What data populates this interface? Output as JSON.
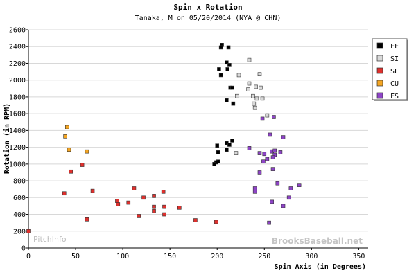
{
  "chart_data": {
    "type": "scatter",
    "title": "Spin x Rotation",
    "subtitle": "Tanaka, M on 05/20/2014 (NYA @ CHN)",
    "xlabel": "Spin Axis (in Degrees)",
    "ylabel": "Rotation (in RPM)",
    "xlim": [
      0,
      360
    ],
    "ylim": [
      0,
      2600
    ],
    "xticks": [
      0,
      50,
      100,
      150,
      200,
      250,
      300,
      350
    ],
    "yticks": [
      0,
      200,
      400,
      600,
      800,
      1000,
      1200,
      1400,
      1600,
      1800,
      2000,
      2200,
      2400,
      2600
    ],
    "grid": "horizontal",
    "legend_position": "right",
    "series": [
      {
        "name": "FF",
        "color": "#000000",
        "points": [
          [
            205,
            2420
          ],
          [
            204,
            2390
          ],
          [
            212,
            2390
          ],
          [
            210,
            2210
          ],
          [
            213,
            2180
          ],
          [
            211,
            2130
          ],
          [
            202,
            2130
          ],
          [
            204,
            2060
          ],
          [
            214,
            1910
          ],
          [
            216,
            1910
          ],
          [
            210,
            1760
          ],
          [
            217,
            1720
          ],
          [
            216,
            1280
          ],
          [
            210,
            1250
          ],
          [
            213,
            1230
          ],
          [
            200,
            1220
          ],
          [
            210,
            1170
          ],
          [
            201,
            1140
          ],
          [
            201,
            1030
          ],
          [
            199,
            1020
          ],
          [
            197,
            1000
          ]
        ]
      },
      {
        "name": "SI",
        "color": "#d9d9d9",
        "points": [
          [
            234,
            2240
          ],
          [
            245,
            2070
          ],
          [
            223,
            2060
          ],
          [
            234,
            1960
          ],
          [
            241,
            1920
          ],
          [
            246,
            1910
          ],
          [
            233,
            1890
          ],
          [
            221,
            1810
          ],
          [
            238,
            1810
          ],
          [
            242,
            1780
          ],
          [
            248,
            1780
          ],
          [
            239,
            1720
          ],
          [
            240,
            1670
          ],
          [
            253,
            1580
          ],
          [
            220,
            1130
          ]
        ]
      },
      {
        "name": "SL",
        "color": "#e0302d",
        "points": [
          [
            0,
            200
          ],
          [
            38,
            650
          ],
          [
            45,
            910
          ],
          [
            57,
            990
          ],
          [
            68,
            680
          ],
          [
            62,
            340
          ],
          [
            94,
            560
          ],
          [
            95,
            520
          ],
          [
            106,
            540
          ],
          [
            112,
            710
          ],
          [
            117,
            380
          ],
          [
            122,
            600
          ],
          [
            133,
            620
          ],
          [
            133,
            490
          ],
          [
            133,
            440
          ],
          [
            143,
            670
          ],
          [
            144,
            400
          ],
          [
            144,
            490
          ],
          [
            160,
            480
          ],
          [
            177,
            330
          ],
          [
            199,
            310
          ]
        ]
      },
      {
        "name": "CU",
        "color": "#f5a623",
        "points": [
          [
            41,
            1440
          ],
          [
            39,
            1330
          ],
          [
            43,
            1170
          ],
          [
            62,
            1150
          ]
        ]
      },
      {
        "name": "FS",
        "color": "#8e44c7",
        "points": [
          [
            260,
            1560
          ],
          [
            248,
            1540
          ],
          [
            256,
            1350
          ],
          [
            270,
            1320
          ],
          [
            234,
            1190
          ],
          [
            245,
            1130
          ],
          [
            250,
            1120
          ],
          [
            258,
            1150
          ],
          [
            261,
            1160
          ],
          [
            267,
            1140
          ],
          [
            261,
            1110
          ],
          [
            259,
            1080
          ],
          [
            249,
            1030
          ],
          [
            253,
            1060
          ],
          [
            259,
            940
          ],
          [
            245,
            900
          ],
          [
            264,
            770
          ],
          [
            240,
            710
          ],
          [
            278,
            710
          ],
          [
            240,
            670
          ],
          [
            287,
            750
          ],
          [
            276,
            600
          ],
          [
            258,
            550
          ],
          [
            270,
            500
          ],
          [
            255,
            300
          ]
        ]
      }
    ]
  },
  "watermarks": {
    "left": "PitchInfo",
    "right": "BrooksBaseball.net"
  }
}
